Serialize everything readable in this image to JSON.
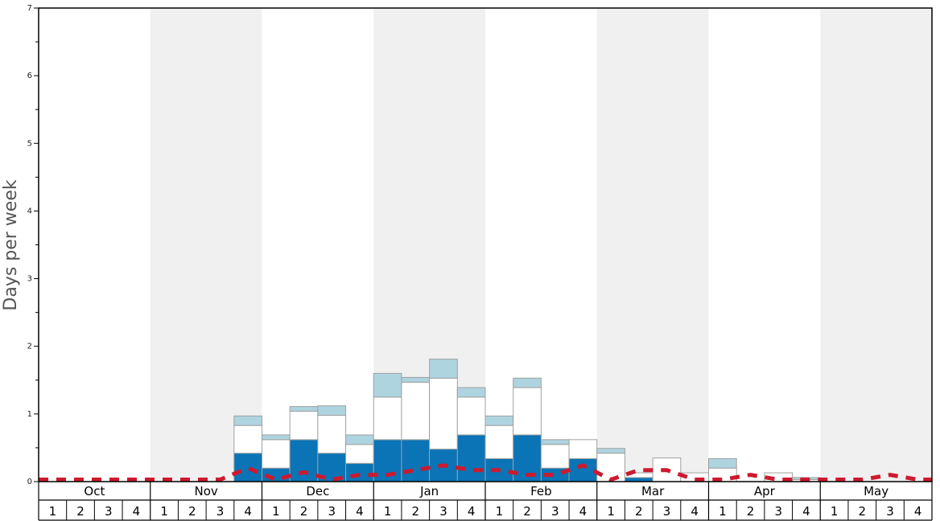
{
  "chart_data": {
    "type": "bar",
    "ylabel": "Days per week",
    "ylim": [
      0,
      7
    ],
    "y_ticks": [
      "0",
      "1",
      "2",
      "3",
      "4",
      "5",
      "6",
      "7"
    ],
    "months": [
      "Oct",
      "Nov",
      "Dec",
      "Jan",
      "Feb",
      "Mar",
      "Apr",
      "May"
    ],
    "week_labels": [
      "1",
      "2",
      "3",
      "4"
    ],
    "colors": {
      "dark": "#0a74b6",
      "mid": "#ffffff",
      "light": "#aed4e0",
      "line": "#cc1a2e",
      "band": "#f0f0f0",
      "bar_stroke": "#a0a0a0"
    },
    "series": [
      {
        "values": [
          0,
          0,
          0,
          0,
          0,
          0,
          0,
          0.42,
          0.2,
          0.62,
          0.42,
          0.27,
          0.62,
          0.62,
          0.48,
          0.69,
          0.34,
          0.69,
          0.2,
          0.34,
          0,
          0.06,
          0,
          0,
          0,
          0,
          0,
          0,
          0,
          0,
          0,
          0
        ]
      },
      {
        "values": [
          0,
          0,
          0,
          0,
          0,
          0,
          0,
          0.41,
          0.42,
          0.42,
          0.56,
          0.28,
          0.63,
          0.85,
          1.05,
          0.56,
          0.49,
          0.7,
          0.35,
          0.28,
          0.42,
          0.07,
          0.35,
          0.13,
          0.2,
          0,
          0.13,
          0.03,
          0,
          0,
          0,
          0
        ]
      },
      {
        "values": [
          0,
          0,
          0,
          0,
          0,
          0,
          0,
          0.14,
          0.07,
          0.07,
          0.14,
          0.14,
          0.35,
          0.07,
          0.28,
          0.14,
          0.14,
          0.14,
          0.07,
          0,
          0.07,
          0,
          0,
          0,
          0.14,
          0,
          0,
          0.03,
          0,
          0,
          0,
          0
        ]
      }
    ],
    "trend_line": [
      0.03,
      0.03,
      0.03,
      0.03,
      0.03,
      0.03,
      0.03,
      0.2,
      0.03,
      0.14,
      0.03,
      0.1,
      0.1,
      0.17,
      0.24,
      0.17,
      0.17,
      0.1,
      0.1,
      0.24,
      0.03,
      0.17,
      0.17,
      0.03,
      0.03,
      0.1,
      0.03,
      0.03,
      0.03,
      0.03,
      0.1,
      0.03
    ]
  }
}
